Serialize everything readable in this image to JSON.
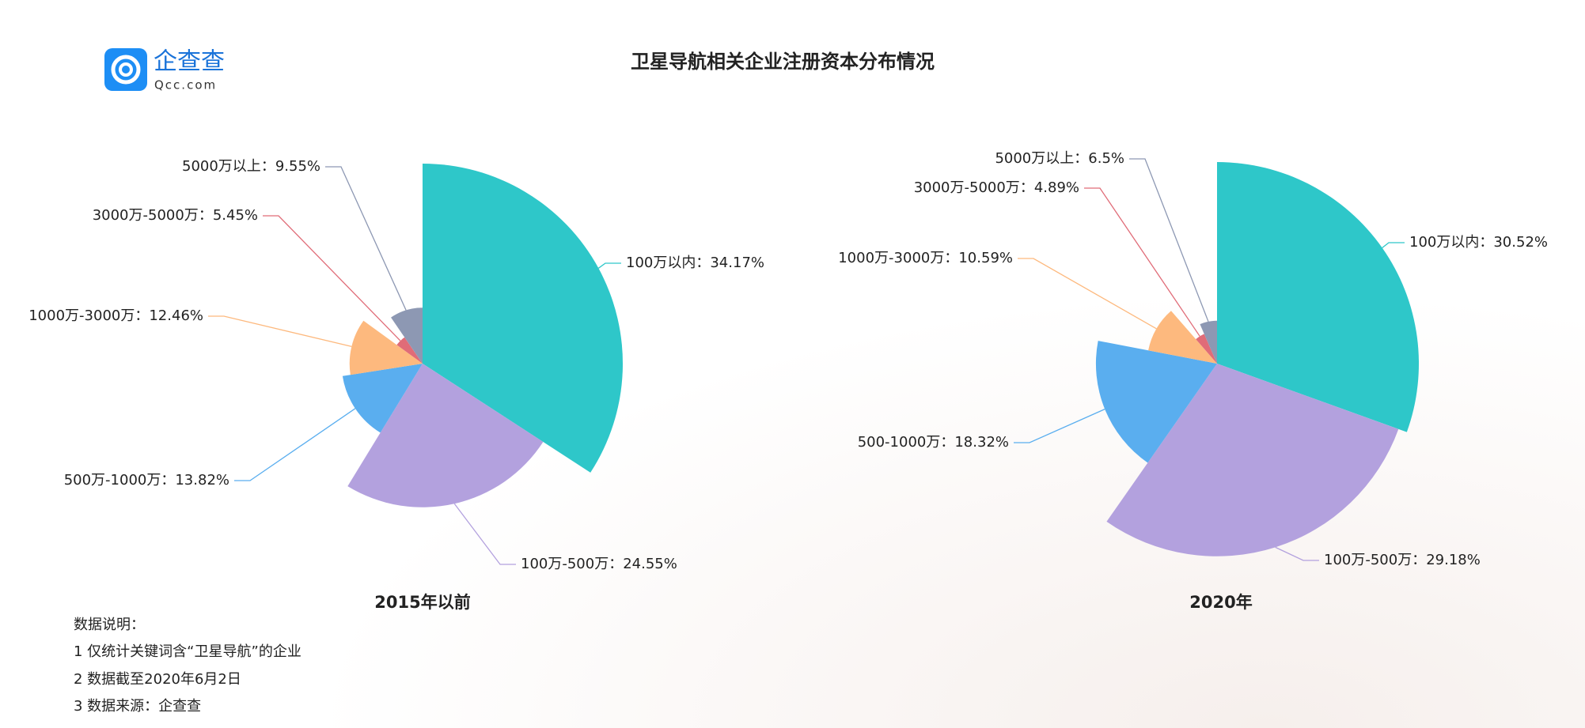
{
  "logo": {
    "name": "企查查",
    "domain": "Qcc.com"
  },
  "title": "卫星导航相关企业注册资本分布情况",
  "notes": {
    "heading": "数据说明：",
    "lines": [
      "1 仅统计关键词含“卫星导航”的企业",
      "2 数据截至2020年6月2日",
      "3 数据来源：企查查"
    ]
  },
  "chart_data": [
    {
      "type": "rose",
      "title": "2015年以前",
      "label_separator": "：",
      "categories": [
        "100万以内",
        "100万-500万",
        "500万-1000万",
        "1000万-3000万",
        "3000万-5000万",
        "5000万以上"
      ],
      "values": [
        34.17,
        24.55,
        13.82,
        12.46,
        5.45,
        9.55
      ],
      "value_labels": [
        "34.17%",
        "24.55%",
        "13.82%",
        "12.46%",
        "5.45%",
        "9.55%"
      ],
      "colors": [
        "#2ec7c9",
        "#b3a1de",
        "#5aaeef",
        "#fdb97e",
        "#e06c78",
        "#8d98b3"
      ]
    },
    {
      "type": "rose",
      "title": "2020年",
      "label_separator": "：",
      "categories": [
        "100万以内",
        "100万-500万",
        "500-1000万",
        "1000万-3000万",
        "3000万-5000万",
        "5000万以上"
      ],
      "values": [
        30.52,
        29.18,
        18.32,
        10.59,
        4.89,
        6.5
      ],
      "value_labels": [
        "30.52%",
        "29.18%",
        "18.32%",
        "10.59%",
        "4.89%",
        "6.5%"
      ],
      "colors": [
        "#2ec7c9",
        "#b3a1de",
        "#5aaeef",
        "#fdb97e",
        "#e06c78",
        "#8d98b3"
      ]
    }
  ]
}
